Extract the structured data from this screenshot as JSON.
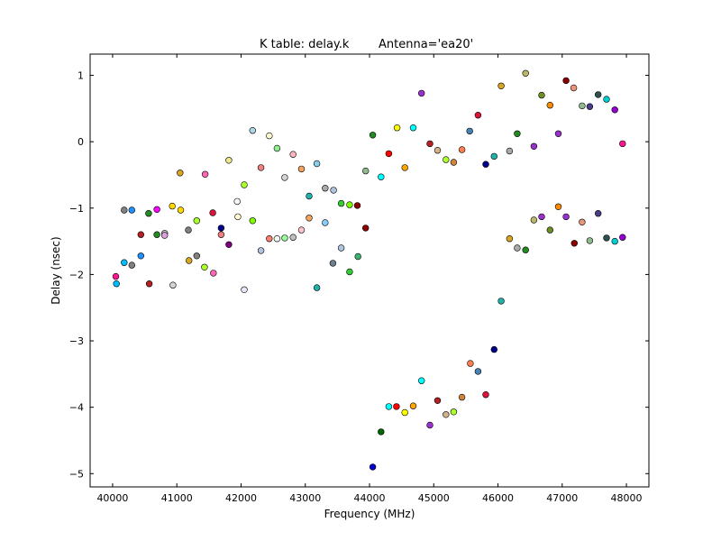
{
  "chart_data": {
    "type": "scatter",
    "title_left": "K table: delay.k",
    "title_right": "Antenna='ea20'",
    "xlabel": "Frequency (MHz)",
    "ylabel": "Delay (nsec)",
    "xlim": [
      39650,
      48350
    ],
    "ylim": [
      -5.2,
      1.32
    ],
    "x_ticks": [
      40000,
      41000,
      42000,
      43000,
      44000,
      45000,
      46000,
      47000,
      48000
    ],
    "x_tick_labels": [
      "40000",
      "41000",
      "42000",
      "43000",
      "44000",
      "45000",
      "46000",
      "47000",
      "48000"
    ],
    "y_ticks": [
      1,
      0,
      -1,
      -2,
      -3,
      -4,
      -5
    ],
    "y_tick_labels": [
      "1",
      "0",
      "−1",
      "−2",
      "−3",
      "−4",
      "−5"
    ],
    "grid": false,
    "legend": "none",
    "marker_edge_color": "#000000",
    "points": [
      {
        "x": 40050,
        "y": -2.03,
        "color": "#ff1493"
      },
      {
        "x": 40060,
        "y": -2.14,
        "color": "#00bfff"
      },
      {
        "x": 40180,
        "y": -1.03,
        "color": "#808080"
      },
      {
        "x": 40180,
        "y": -1.82,
        "color": "#00bfff"
      },
      {
        "x": 40300,
        "y": -1.03,
        "color": "#1e90ff"
      },
      {
        "x": 40300,
        "y": -1.86,
        "color": "#808080"
      },
      {
        "x": 40440,
        "y": -1.4,
        "color": "#b22222"
      },
      {
        "x": 40440,
        "y": -1.72,
        "color": "#1e90ff"
      },
      {
        "x": 40560,
        "y": -1.08,
        "color": "#228b22"
      },
      {
        "x": 40570,
        "y": -2.14,
        "color": "#b22222"
      },
      {
        "x": 40690,
        "y": -1.02,
        "color": "#ff00ff"
      },
      {
        "x": 40690,
        "y": -1.4,
        "color": "#228b22"
      },
      {
        "x": 40810,
        "y": -1.38,
        "color": "#cccccc"
      },
      {
        "x": 40810,
        "y": -1.41,
        "color": "#dda0dd"
      },
      {
        "x": 40930,
        "y": -0.97,
        "color": "#ffd700"
      },
      {
        "x": 40940,
        "y": -2.16,
        "color": "#d3d3d3"
      },
      {
        "x": 41050,
        "y": -0.47,
        "color": "#daa520"
      },
      {
        "x": 41060,
        "y": -1.03,
        "color": "#ffd700"
      },
      {
        "x": 41180,
        "y": -1.33,
        "color": "#808080"
      },
      {
        "x": 41190,
        "y": -1.79,
        "color": "#daa520"
      },
      {
        "x": 41310,
        "y": -1.19,
        "color": "#adff2f"
      },
      {
        "x": 41310,
        "y": -1.72,
        "color": "#808080"
      },
      {
        "x": 41440,
        "y": -0.49,
        "color": "#ff69b4"
      },
      {
        "x": 41430,
        "y": -1.89,
        "color": "#adff2f"
      },
      {
        "x": 41560,
        "y": -1.07,
        "color": "#dc143c"
      },
      {
        "x": 41570,
        "y": -1.98,
        "color": "#ff69b4"
      },
      {
        "x": 41690,
        "y": -1.3,
        "color": "#00008b"
      },
      {
        "x": 41690,
        "y": -1.4,
        "color": "#f08080"
      },
      {
        "x": 41810,
        "y": -0.28,
        "color": "#f0e68c"
      },
      {
        "x": 41810,
        "y": -1.55,
        "color": "#800080"
      },
      {
        "x": 41940,
        "y": -0.9,
        "color": "#f8f8ff"
      },
      {
        "x": 41950,
        "y": -1.13,
        "color": "#fffacd"
      },
      {
        "x": 42050,
        "y": -0.65,
        "color": "#adff2f"
      },
      {
        "x": 42050,
        "y": -2.23,
        "color": "#e6e6fa"
      },
      {
        "x": 42180,
        "y": 0.17,
        "color": "#add8e6"
      },
      {
        "x": 42180,
        "y": -1.19,
        "color": "#7fff00"
      },
      {
        "x": 42310,
        "y": -0.39,
        "color": "#f08080"
      },
      {
        "x": 42310,
        "y": -1.64,
        "color": "#b0c4de"
      },
      {
        "x": 42440,
        "y": 0.09,
        "color": "#fffacd"
      },
      {
        "x": 42440,
        "y": -1.46,
        "color": "#fa8072"
      },
      {
        "x": 42560,
        "y": -0.1,
        "color": "#90ee90"
      },
      {
        "x": 42560,
        "y": -1.46,
        "color": "#f0fff0"
      },
      {
        "x": 42680,
        "y": -0.54,
        "color": "#d3d3d3"
      },
      {
        "x": 42680,
        "y": -1.45,
        "color": "#98fb98"
      },
      {
        "x": 42810,
        "y": -0.19,
        "color": "#ffb6c1"
      },
      {
        "x": 42810,
        "y": -1.44,
        "color": "#c0c0c0"
      },
      {
        "x": 42940,
        "y": -0.41,
        "color": "#f4a460"
      },
      {
        "x": 42940,
        "y": -1.33,
        "color": "#ffc0cb"
      },
      {
        "x": 43060,
        "y": -0.82,
        "color": "#20b2aa"
      },
      {
        "x": 43060,
        "y": -1.15,
        "color": "#f4a460"
      },
      {
        "x": 43180,
        "y": -0.33,
        "color": "#87ceeb"
      },
      {
        "x": 43180,
        "y": -2.2,
        "color": "#20b2aa"
      },
      {
        "x": 43310,
        "y": -0.7,
        "color": "#a9a9a9"
      },
      {
        "x": 43310,
        "y": -1.22,
        "color": "#87cefa"
      },
      {
        "x": 43440,
        "y": -0.73,
        "color": "#b0c4de"
      },
      {
        "x": 43430,
        "y": -1.83,
        "color": "#708090"
      },
      {
        "x": 43560,
        "y": -0.93,
        "color": "#32cd32"
      },
      {
        "x": 43560,
        "y": -1.6,
        "color": "#b0c4de"
      },
      {
        "x": 43690,
        "y": -0.95,
        "color": "#7cfc00"
      },
      {
        "x": 43690,
        "y": -1.96,
        "color": "#32cd32"
      },
      {
        "x": 43810,
        "y": -0.96,
        "color": "#8b0000"
      },
      {
        "x": 43820,
        "y": -1.73,
        "color": "#3cb371"
      },
      {
        "x": 43940,
        "y": -0.44,
        "color": "#8fbc8f"
      },
      {
        "x": 43940,
        "y": -1.3,
        "color": "#8b0000"
      },
      {
        "x": 44050,
        "y": 0.1,
        "color": "#228b22"
      },
      {
        "x": 44050,
        "y": -4.9,
        "color": "#0000cd"
      },
      {
        "x": 44180,
        "y": -0.53,
        "color": "#00ffff"
      },
      {
        "x": 44180,
        "y": -4.37,
        "color": "#006400"
      },
      {
        "x": 44300,
        "y": -0.18,
        "color": "#ff0000"
      },
      {
        "x": 44300,
        "y": -3.99,
        "color": "#00ffff"
      },
      {
        "x": 44430,
        "y": 0.21,
        "color": "#ffff00"
      },
      {
        "x": 44420,
        "y": -3.99,
        "color": "#ff0000"
      },
      {
        "x": 44550,
        "y": -0.39,
        "color": "#ffa500"
      },
      {
        "x": 44550,
        "y": -4.08,
        "color": "#ffff00"
      },
      {
        "x": 44680,
        "y": 0.21,
        "color": "#00ffff"
      },
      {
        "x": 44680,
        "y": -3.98,
        "color": "#ffa500"
      },
      {
        "x": 44810,
        "y": 0.73,
        "color": "#9932cc"
      },
      {
        "x": 44810,
        "y": -3.6,
        "color": "#00ffff"
      },
      {
        "x": 44940,
        "y": -0.03,
        "color": "#b22222"
      },
      {
        "x": 44940,
        "y": -4.27,
        "color": "#9932cc"
      },
      {
        "x": 45060,
        "y": -0.13,
        "color": "#d2b48c"
      },
      {
        "x": 45060,
        "y": -3.9,
        "color": "#b22222"
      },
      {
        "x": 45190,
        "y": -0.27,
        "color": "#adff2f"
      },
      {
        "x": 45190,
        "y": -4.11,
        "color": "#d2b48c"
      },
      {
        "x": 45310,
        "y": -0.31,
        "color": "#cd853f"
      },
      {
        "x": 45310,
        "y": -4.07,
        "color": "#adff2f"
      },
      {
        "x": 45440,
        "y": -0.12,
        "color": "#ff7f50"
      },
      {
        "x": 45440,
        "y": -3.85,
        "color": "#cd853f"
      },
      {
        "x": 45560,
        "y": 0.16,
        "color": "#4682b4"
      },
      {
        "x": 45570,
        "y": -3.34,
        "color": "#ff7f50"
      },
      {
        "x": 45690,
        "y": 0.4,
        "color": "#dc143c"
      },
      {
        "x": 45690,
        "y": -3.46,
        "color": "#4682b4"
      },
      {
        "x": 45810,
        "y": -0.34,
        "color": "#00008b"
      },
      {
        "x": 45810,
        "y": -3.81,
        "color": "#dc143c"
      },
      {
        "x": 45940,
        "y": -0.22,
        "color": "#20b2aa"
      },
      {
        "x": 45940,
        "y": -3.13,
        "color": "#00008b"
      },
      {
        "x": 46050,
        "y": 0.84,
        "color": "#daa520"
      },
      {
        "x": 46050,
        "y": -2.4,
        "color": "#20b2aa"
      },
      {
        "x": 46180,
        "y": -0.14,
        "color": "#a9a9a9"
      },
      {
        "x": 46180,
        "y": -1.46,
        "color": "#daa520"
      },
      {
        "x": 46300,
        "y": 0.12,
        "color": "#228b22"
      },
      {
        "x": 46300,
        "y": -1.6,
        "color": "#a9a9a9"
      },
      {
        "x": 46430,
        "y": 1.03,
        "color": "#bdb76b"
      },
      {
        "x": 46430,
        "y": -1.63,
        "color": "#228b22"
      },
      {
        "x": 46560,
        "y": -0.07,
        "color": "#9932cc"
      },
      {
        "x": 46560,
        "y": -1.18,
        "color": "#bdb76b"
      },
      {
        "x": 46680,
        "y": 0.7,
        "color": "#6b8e23"
      },
      {
        "x": 46680,
        "y": -1.13,
        "color": "#9932cc"
      },
      {
        "x": 46810,
        "y": 0.55,
        "color": "#ff8c00"
      },
      {
        "x": 46810,
        "y": -1.33,
        "color": "#6b8e23"
      },
      {
        "x": 46940,
        "y": 0.12,
        "color": "#9932cc"
      },
      {
        "x": 46940,
        "y": -0.98,
        "color": "#ff8c00"
      },
      {
        "x": 47060,
        "y": 0.92,
        "color": "#8b0000"
      },
      {
        "x": 47060,
        "y": -1.13,
        "color": "#9932cc"
      },
      {
        "x": 47180,
        "y": 0.81,
        "color": "#e9967a"
      },
      {
        "x": 47190,
        "y": -1.53,
        "color": "#8b0000"
      },
      {
        "x": 47310,
        "y": 0.54,
        "color": "#8fbc8f"
      },
      {
        "x": 47310,
        "y": -1.21,
        "color": "#e9967a"
      },
      {
        "x": 47430,
        "y": 0.53,
        "color": "#483d8b"
      },
      {
        "x": 47430,
        "y": -1.49,
        "color": "#8fbc8f"
      },
      {
        "x": 47560,
        "y": 0.71,
        "color": "#2f4f4f"
      },
      {
        "x": 47560,
        "y": -1.08,
        "color": "#483d8b"
      },
      {
        "x": 47690,
        "y": 0.64,
        "color": "#00ced1"
      },
      {
        "x": 47690,
        "y": -1.45,
        "color": "#2f4f4f"
      },
      {
        "x": 47820,
        "y": 0.48,
        "color": "#9400d3"
      },
      {
        "x": 47820,
        "y": -1.5,
        "color": "#00ced1"
      },
      {
        "x": 47940,
        "y": -0.03,
        "color": "#ff1493"
      },
      {
        "x": 47940,
        "y": -1.44,
        "color": "#9400d3"
      }
    ]
  }
}
